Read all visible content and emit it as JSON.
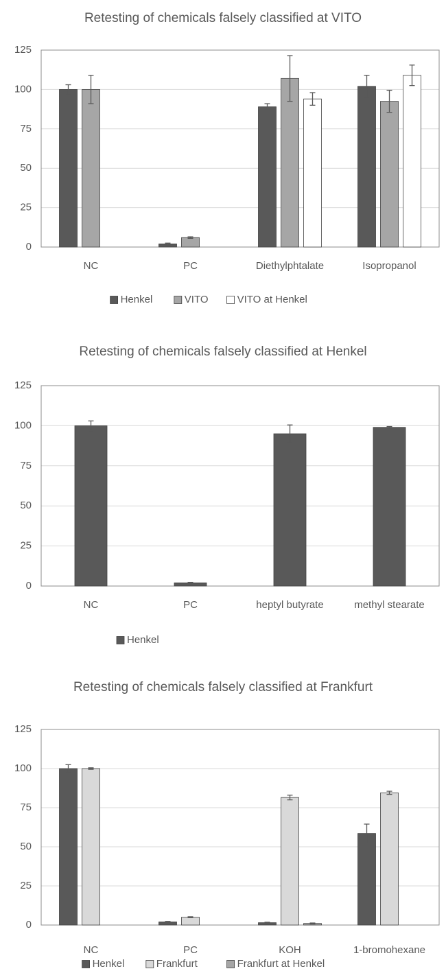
{
  "chart_data": [
    {
      "type": "bar",
      "title": "Retesting of chemicals falsely classified at VITO",
      "categories": [
        "NC",
        "PC",
        "Diethylphtalate",
        "Isopropanol"
      ],
      "series": [
        {
          "name": "Henkel",
          "color": "#595959",
          "values": [
            100,
            2,
            89,
            102
          ],
          "errors": [
            3,
            0.5,
            2,
            7
          ]
        },
        {
          "name": "VITO",
          "color": "#a6a6a6",
          "values": [
            100,
            6,
            107,
            92.5
          ],
          "errors": [
            9,
            0.5,
            14.5,
            7
          ]
        },
        {
          "name": "VITO at Henkel",
          "color": "#ffffff",
          "values": [
            null,
            null,
            94,
            109
          ],
          "errors": [
            null,
            null,
            4,
            6.5
          ]
        }
      ],
      "ylim": [
        0,
        125
      ],
      "yticks": [
        0,
        25,
        50,
        75,
        100,
        125
      ],
      "grid": true,
      "legend": "bottom"
    },
    {
      "type": "bar",
      "title": "Retesting of chemicals falsely classified at Henkel",
      "categories": [
        "NC",
        "PC",
        "heptyl butyrate",
        "methyl stearate"
      ],
      "series": [
        {
          "name": "Henkel",
          "color": "#595959",
          "values": [
            100,
            2,
            95,
            99
          ],
          "errors": [
            3,
            0.3,
            5.5,
            0.5
          ]
        }
      ],
      "ylim": [
        0,
        125
      ],
      "yticks": [
        0,
        25,
        50,
        75,
        100,
        125
      ],
      "grid": true,
      "legend": "bottom-left"
    },
    {
      "type": "bar",
      "title": "Retesting of chemicals falsely classified at Frankfurt",
      "categories": [
        "NC",
        "PC",
        "KOH",
        "1-bromohexane"
      ],
      "series": [
        {
          "name": "Henkel",
          "color": "#595959",
          "values": [
            100,
            2,
            1.5,
            58.5
          ],
          "errors": [
            2.5,
            0.3,
            0.3,
            6
          ]
        },
        {
          "name": "Frankfurt",
          "color": "#d9d9d9",
          "values": [
            100,
            5,
            81.5,
            84.5
          ],
          "errors": [
            0.5,
            0.3,
            1.5,
            1
          ]
        },
        {
          "name": "Frankfurt at Henkel",
          "color": "#a6a6a6",
          "values": [
            null,
            null,
            1,
            null
          ],
          "errors": [
            null,
            null,
            0.3,
            null
          ]
        }
      ],
      "ylim": [
        0,
        125
      ],
      "yticks": [
        0,
        25,
        50,
        75,
        100,
        125
      ],
      "grid": true,
      "legend": "bottom"
    }
  ]
}
